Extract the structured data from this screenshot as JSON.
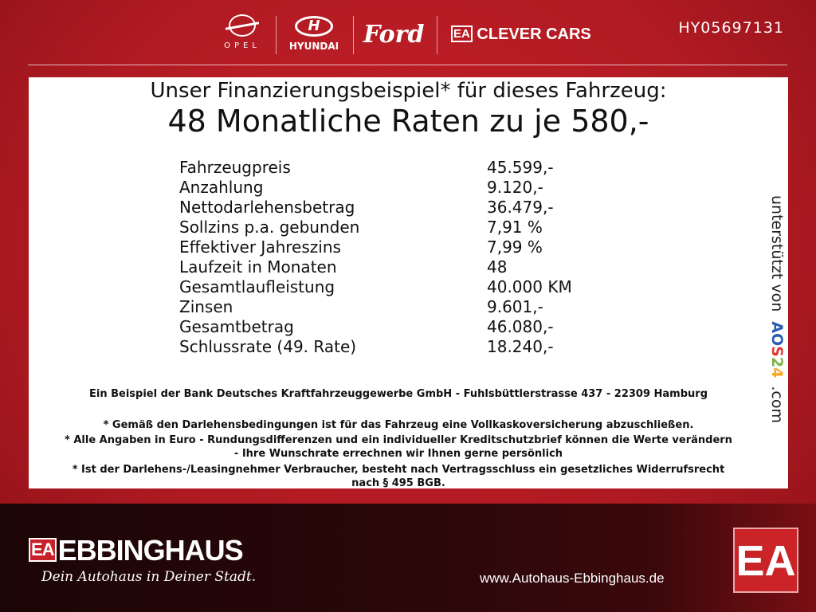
{
  "header": {
    "brands": [
      "OPEL",
      "HYUNDAI",
      "Ford",
      "CLEVER CARS"
    ],
    "clever_mark": "EA",
    "vehicle_code": "HY05697131"
  },
  "offer": {
    "title": "Unser Finanzierungsbeispiel* für dieses Fahrzeug:",
    "headline": "48 Monatliche Raten zu je 580,-",
    "rows": [
      {
        "label": "Fahrzeugpreis",
        "value": "45.599,-"
      },
      {
        "label": "Anzahlung",
        "value": "9.120,-"
      },
      {
        "label": "Nettodarlehensbetrag",
        "value": "36.479,-"
      },
      {
        "label": "Sollzins p.a. gebunden",
        "value": "7,91 %"
      },
      {
        "label": "Effektiver Jahreszins",
        "value": "7,99 %"
      },
      {
        "label": "Laufzeit in Monaten",
        "value": "48"
      },
      {
        "label": "Gesamtlaufleistung",
        "value": "40.000 KM"
      },
      {
        "label": "Zinsen",
        "value": "9.601,-"
      },
      {
        "label": "Gesamtbetrag",
        "value": "46.080,-"
      },
      {
        "label": "Schlussrate (49. Rate)",
        "value": "18.240,-"
      }
    ],
    "bank_note": "Ein Beispiel der Bank Deutsches Kraftfahrzeuggewerbe GmbH - Fuhlsbüttlerstrasse 437 - 22309 Hamburg",
    "notes": [
      "* Gemäß den Darlehensbedingungen ist für das Fahrzeug eine Vollkaskoversicherung abzuschließen.",
      "* Alle Angaben in Euro - Rundungsdifferenzen und ein individueller Kreditschutzbrief können die Werte verändern",
      "- Ihre Wunschrate errechnen wir Ihnen gerne persönlich",
      "* Ist der Darlehens-/Leasingnehmer Verbraucher, besteht nach Vertragsschluss ein gesetzliches Widerrufsrecht",
      "nach § 495 BGB."
    ],
    "support": {
      "prefix": "unterstützt von",
      "brand": "AOS24",
      ".com": ".com",
      "brand_colors": [
        "#2a5db0",
        "#e53935",
        "#7cb342",
        "#f9a825"
      ]
    }
  },
  "footer": {
    "logo_mark": "EA",
    "dealer": "EBBINGHAUS",
    "slogan": "Dein Autohaus in Deiner Stadt.",
    "url": "www.Autohaus-Ebbinghaus.de",
    "corner_mark": "EA"
  }
}
